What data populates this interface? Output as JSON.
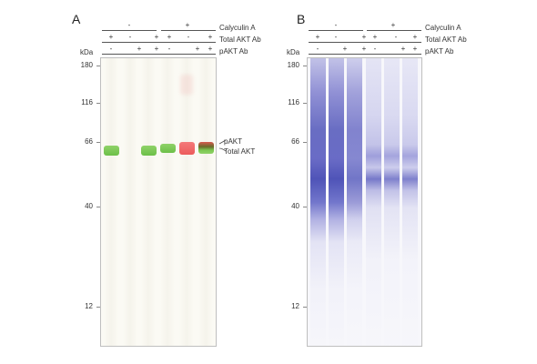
{
  "panels": {
    "a": {
      "letter": "A",
      "treatments": {
        "calyculin": "Calyculin A",
        "total_akt": "Total AKT Ab",
        "pakt": "pAKT Ab"
      },
      "calyculin_signs": [
        "-",
        "+"
      ],
      "total_akt_signs": [
        "+",
        "-",
        "+",
        "+",
        "-",
        "+"
      ],
      "pakt_signs": [
        "-",
        "+",
        "+",
        "-",
        "+",
        "+"
      ],
      "kda_label": "kDa",
      "markers": [
        "180",
        "116",
        "66",
        "40",
        "12"
      ],
      "band_labels": {
        "pakt": "pAKT",
        "total_akt": "Total AKT"
      }
    },
    "b": {
      "letter": "B",
      "treatments": {
        "calyculin": "Calyculin A",
        "total_akt": "Total AKT Ab",
        "pakt": "pAKT Ab"
      },
      "calyculin_signs": [
        "-",
        "+"
      ],
      "total_akt_signs": [
        "+",
        "-",
        "+",
        "+",
        "-",
        "+"
      ],
      "pakt_signs": [
        "-",
        "+",
        "+",
        "-",
        "+",
        "+"
      ],
      "kda_label": "kDa",
      "markers": [
        "180",
        "116",
        "66",
        "40",
        "12"
      ]
    }
  },
  "colors": {
    "total_akt_band": "#7cc852",
    "pakt_band": "#f06060",
    "merged_band": "#5a6a2a",
    "protein_stain": "#5a5cc0"
  }
}
